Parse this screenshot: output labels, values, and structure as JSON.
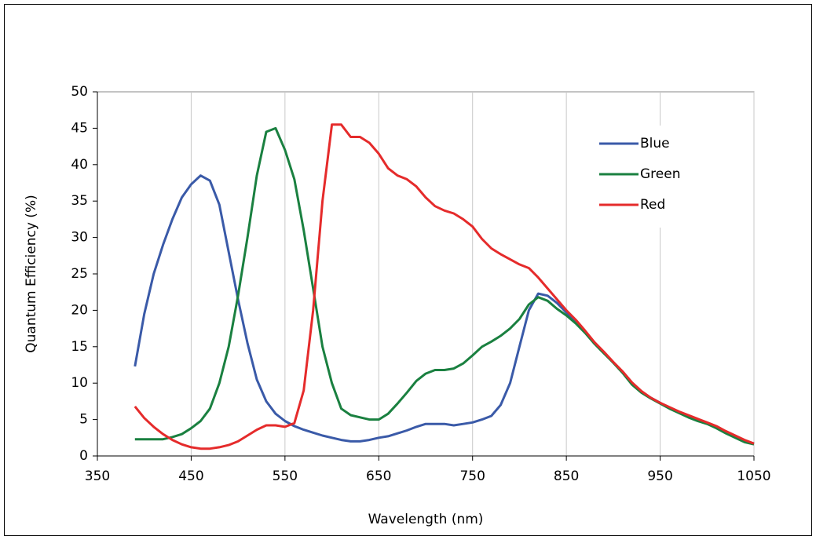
{
  "chart_data": {
    "type": "line",
    "x_label": "Wavelength (nm)",
    "y_label": "Quantum Efficiency (%)",
    "xlim": [
      350,
      1050
    ],
    "xticks": [
      350,
      450,
      550,
      650,
      750,
      850,
      950,
      1050
    ],
    "ylim": [
      0,
      50
    ],
    "yticks": [
      0,
      5,
      10,
      15,
      20,
      25,
      30,
      35,
      40,
      45,
      50
    ],
    "grid": true,
    "legend": "upper right",
    "x": [
      390,
      400,
      410,
      420,
      430,
      440,
      450,
      460,
      470,
      480,
      490,
      500,
      510,
      520,
      530,
      540,
      550,
      560,
      570,
      580,
      590,
      600,
      610,
      620,
      630,
      640,
      650,
      660,
      670,
      680,
      690,
      700,
      710,
      720,
      730,
      740,
      750,
      760,
      770,
      780,
      790,
      800,
      810,
      820,
      830,
      840,
      850,
      860,
      870,
      880,
      890,
      900,
      910,
      920,
      930,
      940,
      950,
      960,
      970,
      980,
      990,
      1000,
      1010,
      1020,
      1030,
      1040,
      1050
    ],
    "series": [
      {
        "name": "Blue",
        "color": "#3a5aa8",
        "values": [
          12.3,
          19.5,
          25,
          29,
          32.5,
          35.5,
          37.3,
          38.5,
          37.8,
          34.5,
          28,
          21.5,
          15.5,
          10.5,
          7.5,
          5.8,
          4.8,
          4.1,
          3.6,
          3.2,
          2.8,
          2.5,
          2.2,
          2.0,
          2.0,
          2.2,
          2.5,
          2.7,
          3.1,
          3.5,
          4.0,
          4.4,
          4.4,
          4.4,
          4.2,
          4.4,
          4.6,
          5.0,
          5.5,
          7.0,
          10.0,
          15.0,
          20.0,
          22.3,
          22.0,
          21.0,
          19.7,
          18.5,
          17.0,
          15.5,
          14.2,
          12.8,
          11.5,
          10.0,
          8.8,
          8.0,
          7.3,
          6.6,
          6.0,
          5.5,
          5.0,
          4.5,
          4.0,
          3.3,
          2.7,
          2.1,
          1.7
        ]
      },
      {
        "name": "Green",
        "color": "#1a8040",
        "values": [
          2.3,
          2.3,
          2.3,
          2.3,
          2.6,
          3.0,
          3.8,
          4.8,
          6.5,
          10,
          15,
          22,
          30,
          38.5,
          44.5,
          45.0,
          42,
          38,
          31,
          23,
          15,
          10,
          6.5,
          5.6,
          5.3,
          5.0,
          5.0,
          5.8,
          7.2,
          8.7,
          10.3,
          11.3,
          11.8,
          11.8,
          12.0,
          12.7,
          13.8,
          15.0,
          15.7,
          16.5,
          17.5,
          18.8,
          20.8,
          21.8,
          21.3,
          20.2,
          19.3,
          18.2,
          16.9,
          15.4,
          14.1,
          12.8,
          11.4,
          9.8,
          8.7,
          7.9,
          7.2,
          6.5,
          5.9,
          5.3,
          4.8,
          4.4,
          3.8,
          3.1,
          2.5,
          1.9,
          1.6
        ]
      },
      {
        "name": "Red",
        "color": "#e52b2b",
        "values": [
          6.8,
          5.2,
          4.0,
          3.0,
          2.2,
          1.6,
          1.2,
          1.0,
          1.0,
          1.2,
          1.5,
          2.0,
          2.8,
          3.6,
          4.2,
          4.2,
          4.0,
          4.5,
          9,
          20,
          35,
          45.5,
          45.5,
          43.8,
          43.8,
          43.0,
          41.5,
          39.5,
          38.5,
          38.0,
          37.0,
          35.5,
          34.3,
          33.7,
          33.3,
          32.5,
          31.5,
          29.8,
          28.5,
          27.7,
          27.0,
          26.3,
          25.8,
          24.5,
          23.0,
          21.5,
          20.0,
          18.7,
          17.2,
          15.6,
          14.3,
          12.9,
          11.6,
          10.1,
          8.9,
          8.0,
          7.3,
          6.7,
          6.1,
          5.6,
          5.1,
          4.6,
          4.1,
          3.4,
          2.8,
          2.2,
          1.7
        ]
      }
    ]
  }
}
